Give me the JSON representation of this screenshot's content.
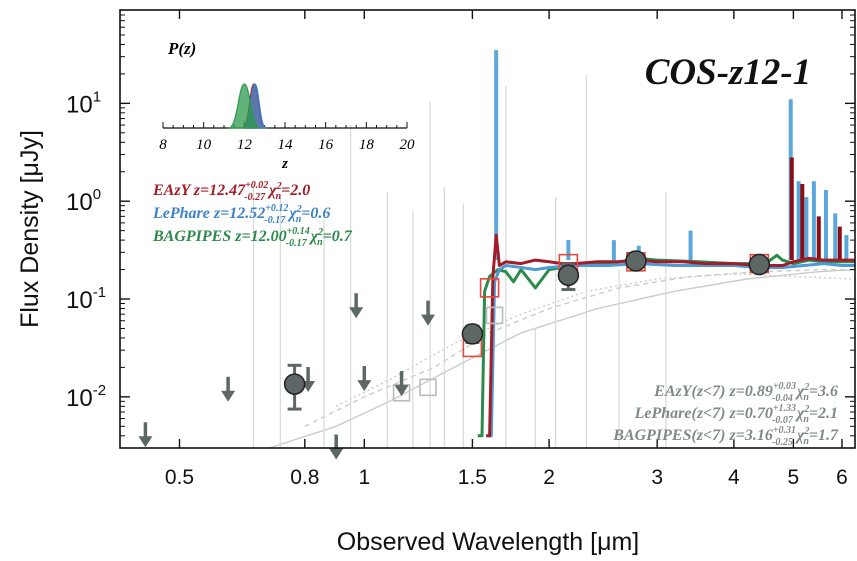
{
  "chart_data": {
    "type": "scatter",
    "title": "COS-z12-1",
    "xlabel": "Observed Wavelength [μm]",
    "ylabel": "Flux Density [μJy]",
    "x_scale": "log",
    "y_scale": "log",
    "xlim": [
      0.4,
      6.3
    ],
    "ylim": [
      0.003,
      90
    ],
    "x_ticks": [
      {
        "value": 0.5,
        "label": "0.5"
      },
      {
        "value": 0.8,
        "label": "0.8"
      },
      {
        "value": 1,
        "label": "1"
      },
      {
        "value": 1.5,
        "label": "1.5"
      },
      {
        "value": 2,
        "label": "2"
      },
      {
        "value": 3,
        "label": "3"
      },
      {
        "value": 4,
        "label": "4"
      },
      {
        "value": 5,
        "label": "5"
      },
      {
        "value": 6,
        "label": "6"
      }
    ],
    "y_ticks": [
      {
        "value": 0.01,
        "base": "10",
        "exp": "-2"
      },
      {
        "value": 0.1,
        "base": "10",
        "exp": "-1"
      },
      {
        "value": 1,
        "base": "10",
        "exp": "0"
      },
      {
        "value": 10,
        "base": "10",
        "exp": "1"
      }
    ],
    "detections": [
      {
        "x": 0.77,
        "y": 0.0135,
        "ylo": 0.0075,
        "yhi": 0.021
      },
      {
        "x": 1.5,
        "y": 0.044,
        "ylo": 0.036,
        "yhi": 0.053
      },
      {
        "x": 2.15,
        "y": 0.175,
        "ylo": 0.125,
        "yhi": 0.225
      },
      {
        "x": 2.77,
        "y": 0.245,
        "ylo": 0.225,
        "yhi": 0.265
      },
      {
        "x": 4.4,
        "y": 0.225,
        "ylo": 0.21,
        "yhi": 0.24
      }
    ],
    "upper_limits": [
      {
        "x": 0.44,
        "y": 0.0036
      },
      {
        "x": 0.6,
        "y": 0.0105
      },
      {
        "x": 0.81,
        "y": 0.0132
      },
      {
        "x": 0.9,
        "y": 0.0027
      },
      {
        "x": 0.97,
        "y": 0.075
      },
      {
        "x": 1.0,
        "y": 0.0135
      },
      {
        "x": 1.15,
        "y": 0.012
      },
      {
        "x": 1.27,
        "y": 0.063
      }
    ],
    "model_photometry_high_z": [
      {
        "x": 1.5,
        "y": 0.032
      },
      {
        "x": 1.6,
        "y": 0.13
      },
      {
        "x": 2.15,
        "y": 0.23
      },
      {
        "x": 2.77,
        "y": 0.24
      },
      {
        "x": 4.4,
        "y": 0.23
      }
    ],
    "model_photometry_low_z": [
      {
        "x": 1.15,
        "y": 0.011
      },
      {
        "x": 1.27,
        "y": 0.0125
      },
      {
        "x": 1.63,
        "y": 0.068
      }
    ],
    "series": [
      {
        "name": "EAzY",
        "color": "#a31d28",
        "x": [
          1.58,
          1.6,
          1.62,
          1.64,
          1.66,
          1.7,
          1.8,
          1.9,
          2.0,
          2.1,
          2.2,
          2.4,
          2.6,
          2.8,
          3.0,
          3.3,
          3.6,
          4.0,
          4.4,
          4.8,
          5.0,
          5.3,
          5.6,
          6.0,
          6.3
        ],
        "y": [
          0.004,
          0.004,
          0.17,
          0.45,
          0.22,
          0.24,
          0.23,
          0.25,
          0.24,
          0.23,
          0.23,
          0.24,
          0.24,
          0.25,
          0.24,
          0.24,
          0.23,
          0.23,
          0.22,
          0.22,
          0.24,
          0.26,
          0.25,
          0.25,
          0.25
        ]
      },
      {
        "name": "LePhare",
        "color": "#4f9ad6",
        "x": [
          1.58,
          1.61,
          1.63,
          1.66,
          1.7,
          1.8,
          1.9,
          2.0,
          2.2,
          2.5,
          2.8,
          3.2,
          3.6,
          4.0,
          4.4,
          4.8,
          5.2,
          5.6,
          6.0,
          6.3
        ],
        "y": [
          0.004,
          0.004,
          0.15,
          0.2,
          0.22,
          0.21,
          0.2,
          0.21,
          0.22,
          0.22,
          0.23,
          0.22,
          0.22,
          0.22,
          0.21,
          0.21,
          0.22,
          0.23,
          0.22,
          0.22
        ]
      },
      {
        "name": "BAGPIPES",
        "color": "#2c8a4a",
        "x": [
          1.53,
          1.555,
          1.57,
          1.6,
          1.65,
          1.7,
          1.75,
          1.8,
          1.9,
          2.0,
          2.2,
          2.4,
          2.6,
          2.8,
          3.0,
          3.5,
          4.0,
          4.5,
          4.7,
          4.8,
          5.0,
          5.3,
          5.6,
          6.0,
          6.3
        ],
        "y": [
          0.004,
          0.004,
          0.12,
          0.17,
          0.2,
          0.19,
          0.15,
          0.2,
          0.13,
          0.2,
          0.22,
          0.23,
          0.24,
          0.26,
          0.25,
          0.24,
          0.23,
          0.23,
          0.28,
          0.25,
          0.23,
          0.25,
          0.24,
          0.24,
          0.24
        ]
      }
    ],
    "emission_lines": [
      {
        "x": 1.64,
        "y": 35,
        "color": "#5aa7dc"
      },
      {
        "x": 4.95,
        "y": 11,
        "color": "#5aa7dc"
      },
      {
        "x": 5.1,
        "y": 1.6,
        "color": "#5aa7dc"
      },
      {
        "x": 5.25,
        "y": 1.1,
        "color": "#5aa7dc"
      },
      {
        "x": 5.4,
        "y": 1.6,
        "color": "#5aa7dc"
      },
      {
        "x": 5.65,
        "y": 1.3,
        "color": "#5aa7dc"
      },
      {
        "x": 5.85,
        "y": 0.75,
        "color": "#5aa7dc"
      },
      {
        "x": 6.1,
        "y": 0.45,
        "color": "#5aa7dc"
      },
      {
        "x": 2.15,
        "y": 0.4,
        "color": "#5aa7dc"
      },
      {
        "x": 2.55,
        "y": 0.4,
        "color": "#5aa7dc"
      },
      {
        "x": 2.8,
        "y": 0.35,
        "color": "#5aa7dc"
      },
      {
        "x": 3.4,
        "y": 0.5,
        "color": "#5aa7dc"
      },
      {
        "x": 4.97,
        "y": 2.8,
        "color": "#8b0d15"
      },
      {
        "x": 5.17,
        "y": 1.5,
        "color": "#8b0d15"
      },
      {
        "x": 5.5,
        "y": 0.7,
        "color": "#8b0d15"
      },
      {
        "x": 5.95,
        "y": 0.55,
        "color": "#8b0d15"
      }
    ],
    "pz_inset": {
      "label": "P(z)",
      "xlabel": "z",
      "xlim": [
        8,
        20
      ],
      "x_ticks": [
        "8",
        "10",
        "12",
        "14",
        "16",
        "18",
        "20"
      ],
      "peaks": [
        {
          "name": "EAzY",
          "z": 12.47,
          "color": "#a31d28"
        },
        {
          "name": "LePhare",
          "z": 12.52,
          "color": "#3d82c6"
        },
        {
          "name": "BAGPIPES",
          "z": 12.0,
          "color": "#2c9a4e"
        }
      ]
    },
    "annotations_high_z": [
      {
        "prefix": "EAzY z=12.47",
        "sup": "+0.02",
        "sub": "-0.27",
        "chi_value": "=2.0",
        "color": "#a31d28"
      },
      {
        "prefix": "LePhare z=12.52",
        "sup": "+0.12",
        "sub": "-0.17",
        "chi_value": "=0.6",
        "color": "#3d82c6"
      },
      {
        "prefix": "BAGPIPES z=12.00",
        "sup": "+0.14",
        "sub": "-0.17",
        "chi_value": "=0.7",
        "color": "#2c8a4a"
      }
    ],
    "annotations_low_z": [
      {
        "prefix": "EAzY(z<7) z=0.89",
        "sup": "+0.03",
        "sub": "-0.04",
        "chi_value": "=3.6",
        "color": "#7f8a86"
      },
      {
        "prefix": "LePhare(z<7) z=0.70",
        "sup": "+1.33",
        "sub": "-0.07",
        "chi_value": "=2.1",
        "color": "#7f8a86"
      },
      {
        "prefix": "BAGPIPES(z<7) z=3.16",
        "sup": "+0.31",
        "sub": "-0.25",
        "chi_value": "=1.7",
        "color": "#7f8a86"
      }
    ],
    "chi_label": "χ",
    "chi_sub": "n",
    "chi_sup": "2"
  }
}
